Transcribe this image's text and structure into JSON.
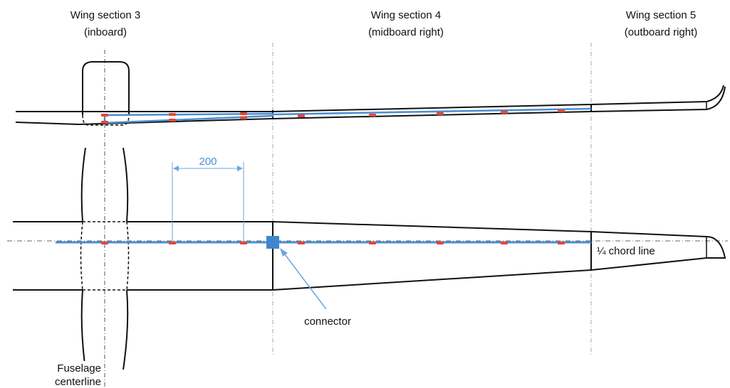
{
  "sections": [
    {
      "line1": "Wing section 3",
      "line2": "(inboard)"
    },
    {
      "line1": "Wing section 4",
      "line2": "(midboard right)"
    },
    {
      "line1": "Wing section 5",
      "line2": "(outboard right)"
    }
  ],
  "dimension": {
    "label": "200"
  },
  "labels": {
    "connector": "connector",
    "chord_line": "¼ chord line",
    "fuselage_line1": "Fuselage",
    "fuselage_line2": "centerline"
  },
  "colors": {
    "outline": "#111111",
    "spar": "#4a8ed4",
    "sensor": "#e0483a",
    "dimension": "#6aa6dd",
    "divider": "#aaaaaa",
    "connector": "#3f86cf"
  }
}
